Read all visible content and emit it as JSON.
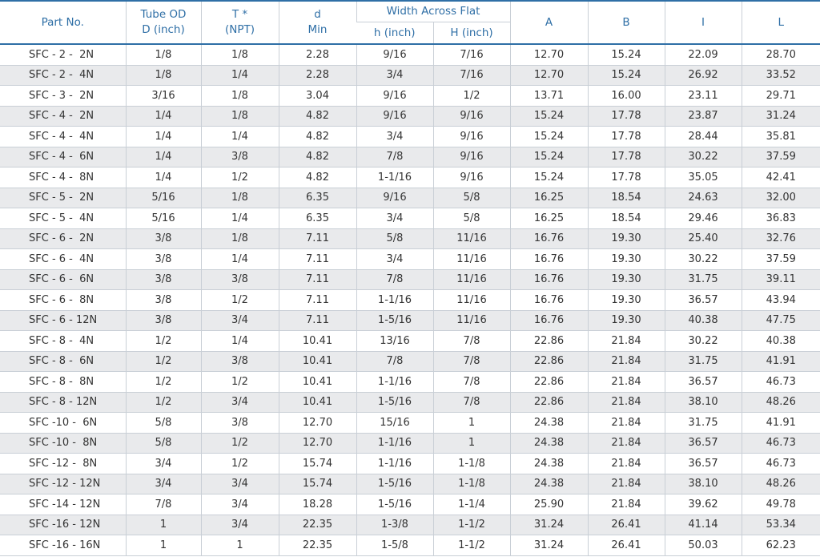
{
  "header": {
    "part_no": "Part No.",
    "tube_od_1": "Tube OD",
    "tube_od_2": "D (inch)",
    "t_1": "T *",
    "t_2": "(NPT)",
    "d_1": "d",
    "d_2": "Min",
    "waf": "Width Across Flat",
    "h_small": "h (inch)",
    "h_large": "H (inch)",
    "a": "A",
    "b": "B",
    "i": "I",
    "l": "L"
  },
  "rows": [
    [
      "SFC - 2 -  2N",
      "1/8",
      "1/8",
      "2.28",
      "9/16",
      "7/16",
      "12.70",
      "15.24",
      "22.09",
      "28.70"
    ],
    [
      "SFC - 2 -  4N",
      "1/8",
      "1/4",
      "2.28",
      "3/4",
      "7/16",
      "12.70",
      "15.24",
      "26.92",
      "33.52"
    ],
    [
      "SFC - 3 -  2N",
      "3/16",
      "1/8",
      "3.04",
      "9/16",
      "1/2",
      "13.71",
      "16.00",
      "23.11",
      "29.71"
    ],
    [
      "SFC - 4 -  2N",
      "1/4",
      "1/8",
      "4.82",
      "9/16",
      "9/16",
      "15.24",
      "17.78",
      "23.87",
      "31.24"
    ],
    [
      "SFC - 4 -  4N",
      "1/4",
      "1/4",
      "4.82",
      "3/4",
      "9/16",
      "15.24",
      "17.78",
      "28.44",
      "35.81"
    ],
    [
      "SFC - 4 -  6N",
      "1/4",
      "3/8",
      "4.82",
      "7/8",
      "9/16",
      "15.24",
      "17.78",
      "30.22",
      "37.59"
    ],
    [
      "SFC - 4 -  8N",
      "1/4",
      "1/2",
      "4.82",
      "1-1/16",
      "9/16",
      "15.24",
      "17.78",
      "35.05",
      "42.41"
    ],
    [
      "SFC - 5 -  2N",
      "5/16",
      "1/8",
      "6.35",
      "9/16",
      "5/8",
      "16.25",
      "18.54",
      "24.63",
      "32.00"
    ],
    [
      "SFC - 5 -  4N",
      "5/16",
      "1/4",
      "6.35",
      "3/4",
      "5/8",
      "16.25",
      "18.54",
      "29.46",
      "36.83"
    ],
    [
      "SFC - 6 -  2N",
      "3/8",
      "1/8",
      "7.11",
      "5/8",
      "11/16",
      "16.76",
      "19.30",
      "25.40",
      "32.76"
    ],
    [
      "SFC - 6 -  4N",
      "3/8",
      "1/4",
      "7.11",
      "3/4",
      "11/16",
      "16.76",
      "19.30",
      "30.22",
      "37.59"
    ],
    [
      "SFC - 6 -  6N",
      "3/8",
      "3/8",
      "7.11",
      "7/8",
      "11/16",
      "16.76",
      "19.30",
      "31.75",
      "39.11"
    ],
    [
      "SFC - 6 -  8N",
      "3/8",
      "1/2",
      "7.11",
      "1-1/16",
      "11/16",
      "16.76",
      "19.30",
      "36.57",
      "43.94"
    ],
    [
      "SFC - 6 - 12N",
      "3/8",
      "3/4",
      "7.11",
      "1-5/16",
      "11/16",
      "16.76",
      "19.30",
      "40.38",
      "47.75"
    ],
    [
      "SFC - 8 -  4N",
      "1/2",
      "1/4",
      "10.41",
      "13/16",
      "7/8",
      "22.86",
      "21.84",
      "30.22",
      "40.38"
    ],
    [
      "SFC - 8 -  6N",
      "1/2",
      "3/8",
      "10.41",
      "7/8",
      "7/8",
      "22.86",
      "21.84",
      "31.75",
      "41.91"
    ],
    [
      "SFC - 8 -  8N",
      "1/2",
      "1/2",
      "10.41",
      "1-1/16",
      "7/8",
      "22.86",
      "21.84",
      "36.57",
      "46.73"
    ],
    [
      "SFC - 8 - 12N",
      "1/2",
      "3/4",
      "10.41",
      "1-5/16",
      "7/8",
      "22.86",
      "21.84",
      "38.10",
      "48.26"
    ],
    [
      "SFC -10 -  6N",
      "5/8",
      "3/8",
      "12.70",
      "15/16",
      "1",
      "24.38",
      "21.84",
      "31.75",
      "41.91"
    ],
    [
      "SFC -10 -  8N",
      "5/8",
      "1/2",
      "12.70",
      "1-1/16",
      "1",
      "24.38",
      "21.84",
      "36.57",
      "46.73"
    ],
    [
      "SFC -12 -  8N",
      "3/4",
      "1/2",
      "15.74",
      "1-1/16",
      "1-1/8",
      "24.38",
      "21.84",
      "36.57",
      "46.73"
    ],
    [
      "SFC -12 - 12N",
      "3/4",
      "3/4",
      "15.74",
      "1-5/16",
      "1-1/8",
      "24.38",
      "21.84",
      "38.10",
      "48.26"
    ],
    [
      "SFC -14 - 12N",
      "7/8",
      "3/4",
      "18.28",
      "1-5/16",
      "1-1/4",
      "25.90",
      "21.84",
      "39.62",
      "49.78"
    ],
    [
      "SFC -16 - 12N",
      "1",
      "3/4",
      "22.35",
      "1-3/8",
      "1-1/2",
      "31.24",
      "26.41",
      "41.14",
      "53.34"
    ],
    [
      "SFC -16 - 16N",
      "1",
      "1",
      "22.35",
      "1-5/8",
      "1-1/2",
      "31.24",
      "26.41",
      "50.03",
      "62.23"
    ]
  ],
  "colors": {
    "header_text": "#2f6fa6",
    "rule": "#2f6fa6",
    "stripe": "#e9eaec",
    "body_text": "#333333"
  }
}
